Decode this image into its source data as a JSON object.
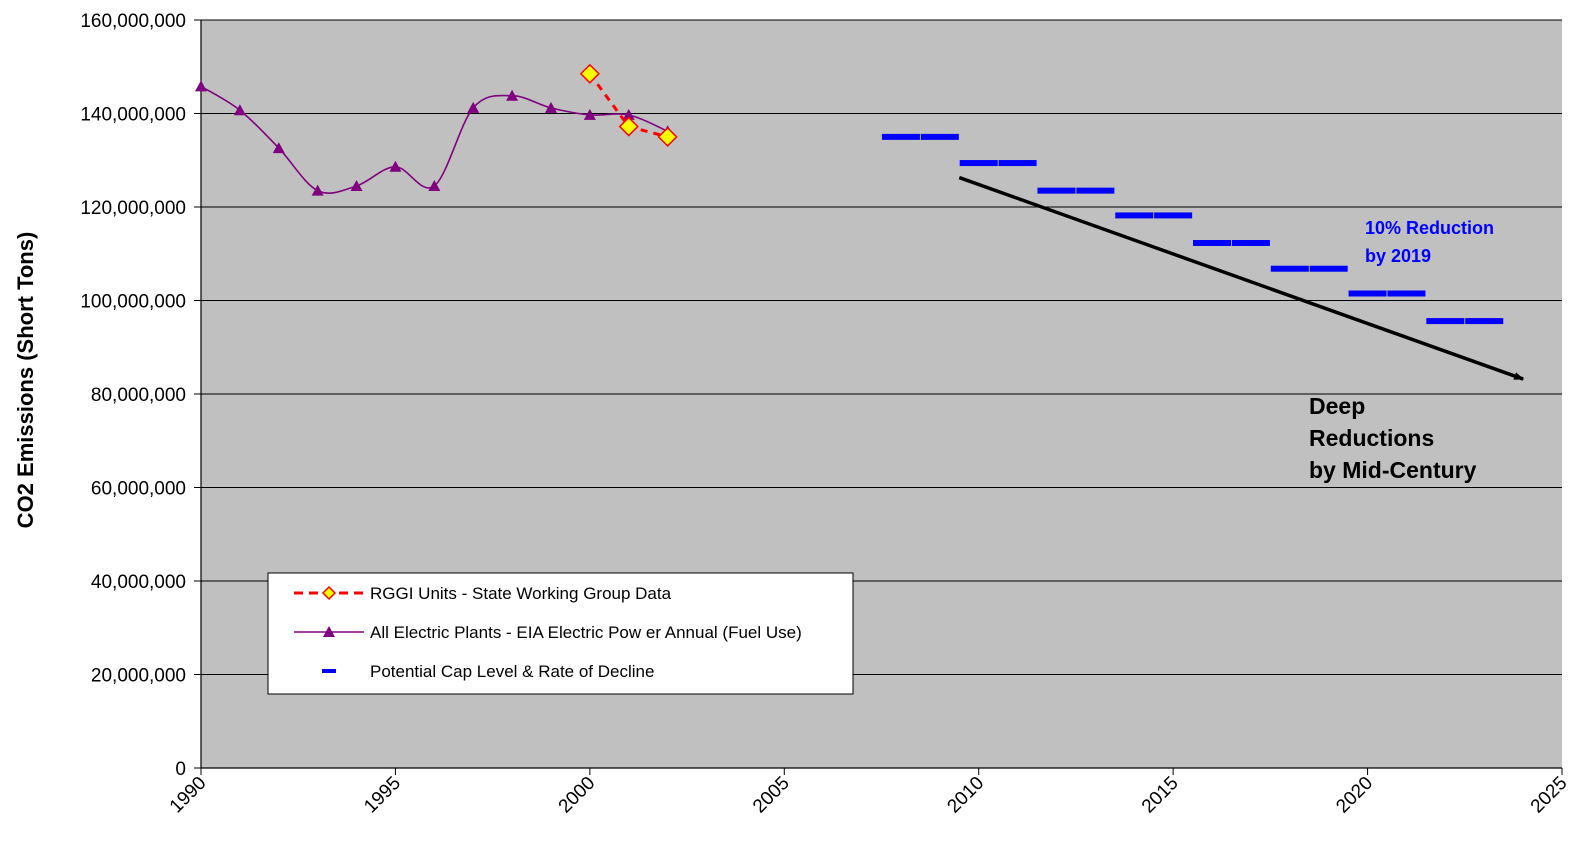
{
  "chart_data": {
    "type": "line",
    "title": "",
    "xlabel": "",
    "ylabel": "CO2 Emissions (Short Tons)",
    "xlim": [
      1990,
      2025
    ],
    "ylim": [
      0,
      160000000
    ],
    "x_ticks": [
      "1990",
      "1995",
      "2000",
      "2005",
      "2010",
      "2015",
      "2020",
      "2025"
    ],
    "y_ticks": [
      "0",
      "20,000,000",
      "40,000,000",
      "60,000,000",
      "80,000,000",
      "100,000,000",
      "120,000,000",
      "140,000,000",
      "160,000,000"
    ],
    "grid": "horizontal",
    "legend_position": "bottom-left",
    "colors": {
      "plot_bg": "#c0c0c0",
      "rggi_line": "#ff0000",
      "rggi_marker_fill": "#ffff00",
      "rggi_marker_edge": "#ff0000",
      "eia_line": "#800080",
      "cap": "#0000ff",
      "arrow": "#000000",
      "annot_blue": "#0000ff"
    },
    "series": [
      {
        "name": "RGGI Units - State Working Group Data",
        "style": "dashed",
        "marker": "diamond",
        "x": [
          2000,
          2001,
          2002
        ],
        "y": [
          148500000,
          137200000,
          135000000
        ]
      },
      {
        "name": "All Electric Plants - EIA Electric Pow er Annual (Fuel Use)",
        "style": "smooth-line",
        "marker": "triangle",
        "x": [
          1990,
          1991,
          1992,
          1993,
          1994,
          1995,
          1996,
          1997,
          1998,
          1999,
          2000,
          2001,
          2002
        ],
        "y": [
          145800000,
          140700000,
          132600000,
          123500000,
          124500000,
          128600000,
          124500000,
          141200000,
          143800000,
          141200000,
          139700000,
          139700000,
          136200000
        ]
      },
      {
        "name": "Potential Cap Level & Rate of Decline",
        "style": "dash-markers",
        "marker": "dash",
        "x": [
          2008,
          2009,
          2010,
          2011,
          2012,
          2013,
          2014,
          2015,
          2016,
          2017,
          2018,
          2019,
          2020,
          2021,
          2022,
          2023
        ],
        "y": [
          135000000,
          135000000,
          129400000,
          129400000,
          123500000,
          123500000,
          118200000,
          118200000,
          112300000,
          112300000,
          106800000,
          106800000,
          101500000,
          101500000,
          95600000,
          95600000
        ]
      }
    ],
    "trend_arrow": {
      "from": [
        2009.5,
        126300000
      ],
      "to": [
        2024,
        83200000
      ]
    },
    "annotations": [
      {
        "lines": [
          "10% Reduction",
          "by 2019"
        ],
        "color": "#0000ff"
      },
      {
        "lines": [
          "Deep",
          "Reductions",
          "by Mid-Century"
        ],
        "color": "#000000"
      }
    ]
  }
}
